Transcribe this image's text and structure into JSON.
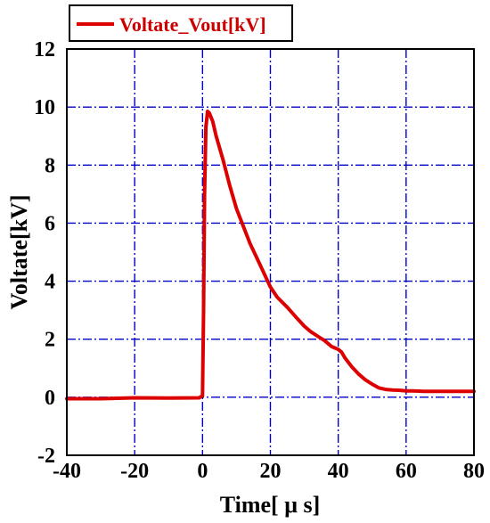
{
  "chart_data": {
    "type": "line",
    "title": "",
    "xlabel": "Time[ μ s]",
    "ylabel": "Voltate[kV]",
    "xlim": [
      -40,
      80
    ],
    "ylim": [
      -2,
      12
    ],
    "xticks": [
      -40,
      -20,
      0,
      20,
      40,
      60,
      80
    ],
    "yticks": [
      -2,
      0,
      2,
      4,
      6,
      8,
      10,
      12
    ],
    "x_tick_labels": [
      "-40",
      "-20",
      "0",
      "20",
      "40",
      "60",
      "80"
    ],
    "y_tick_labels": [
      "-2",
      "0",
      "2",
      "4",
      "6",
      "8",
      "10",
      "12"
    ],
    "grid": true,
    "legend_position": "top-left",
    "series": [
      {
        "name": "Voltate_Vout[kV]",
        "color": "#dd0000",
        "x": [
          -40,
          -30,
          -20,
          -10,
          -1,
          0,
          0.3,
          0.6,
          1,
          1.5,
          2,
          3,
          4,
          6,
          8,
          10,
          12,
          14,
          16,
          18,
          20,
          22,
          25,
          28,
          30,
          32,
          34,
          36,
          38,
          40,
          41,
          42,
          44,
          46,
          48,
          50,
          52,
          54,
          56,
          58,
          60,
          62,
          64,
          65,
          70,
          75,
          80
        ],
        "y": [
          -0.05,
          -0.05,
          -0.02,
          -0.03,
          -0.02,
          0.05,
          3.0,
          7.0,
          9.3,
          9.85,
          9.8,
          9.5,
          9.0,
          8.2,
          7.3,
          6.5,
          5.9,
          5.3,
          4.8,
          4.3,
          3.8,
          3.45,
          3.1,
          2.7,
          2.45,
          2.25,
          2.1,
          1.95,
          1.75,
          1.65,
          1.55,
          1.35,
          1.05,
          0.8,
          0.6,
          0.45,
          0.32,
          0.27,
          0.25,
          0.24,
          0.22,
          0.22,
          0.21,
          0.2,
          0.2,
          0.2,
          0.2
        ]
      }
    ]
  }
}
